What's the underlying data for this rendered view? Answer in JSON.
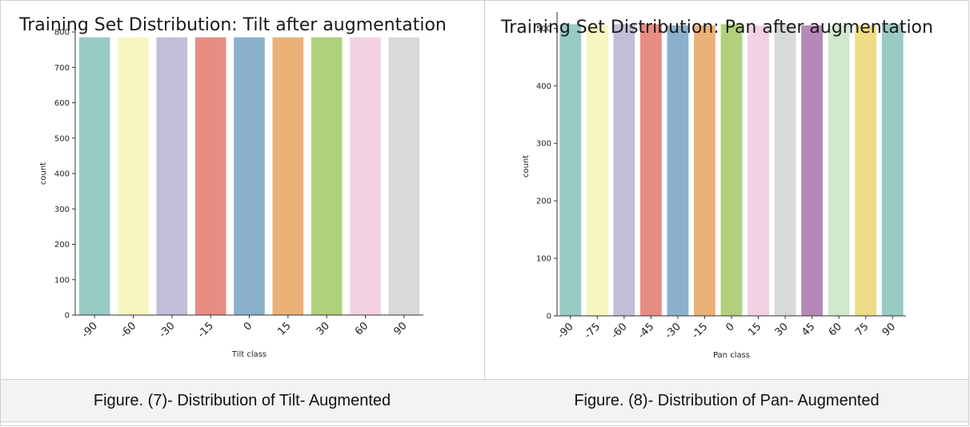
{
  "chart_data": [
    {
      "type": "bar",
      "title": "Training Set Distribution: Tilt after augmentation",
      "xlabel": "Tilt class",
      "ylabel": "count",
      "categories": [
        "-90",
        "-60",
        "-30",
        "-15",
        "0",
        "15",
        "30",
        "60",
        "90"
      ],
      "values": [
        785,
        785,
        785,
        785,
        785,
        785,
        785,
        785,
        785
      ],
      "ylim": [
        0,
        800
      ],
      "yticks": [
        "0",
        "100",
        "200",
        "300",
        "400",
        "500",
        "600",
        "700",
        "800"
      ],
      "grid": false,
      "colors": [
        "#99cbc5",
        "#f6f6c0",
        "#c3bdd8",
        "#e88d83",
        "#8bb0cb",
        "#ebb277",
        "#b1d07c",
        "#f3d1e3",
        "#d9d9d9"
      ]
    },
    {
      "type": "bar",
      "title": "Training Set Distribution: Pan after augmentation",
      "xlabel": "Pan class",
      "ylabel": "count",
      "categories": [
        "-90",
        "-75",
        "-60",
        "-45",
        "-30",
        "-15",
        "0",
        "15",
        "30",
        "45",
        "60",
        "75",
        "90"
      ],
      "values": [
        507,
        505,
        507,
        507,
        505,
        505,
        507,
        505,
        507,
        505,
        505,
        505,
        507
      ],
      "ylim": [
        0,
        520
      ],
      "yticks": [
        "0",
        "100",
        "200",
        "300",
        "400",
        "500"
      ],
      "grid": false,
      "colors": [
        "#99cbc5",
        "#f6f6c0",
        "#c3bdd8",
        "#e88d83",
        "#8bb0cb",
        "#ebb277",
        "#b1d07c",
        "#f3d1e3",
        "#d9d9d9",
        "#b589b7",
        "#d2e8cd",
        "#eedd86",
        "#99cbc5"
      ]
    }
  ],
  "captions": {
    "left": "Figure. (7)- Distribution of Tilt- Augmented",
    "right": "Figure. (8)- Distribution of Pan- Augmented"
  }
}
